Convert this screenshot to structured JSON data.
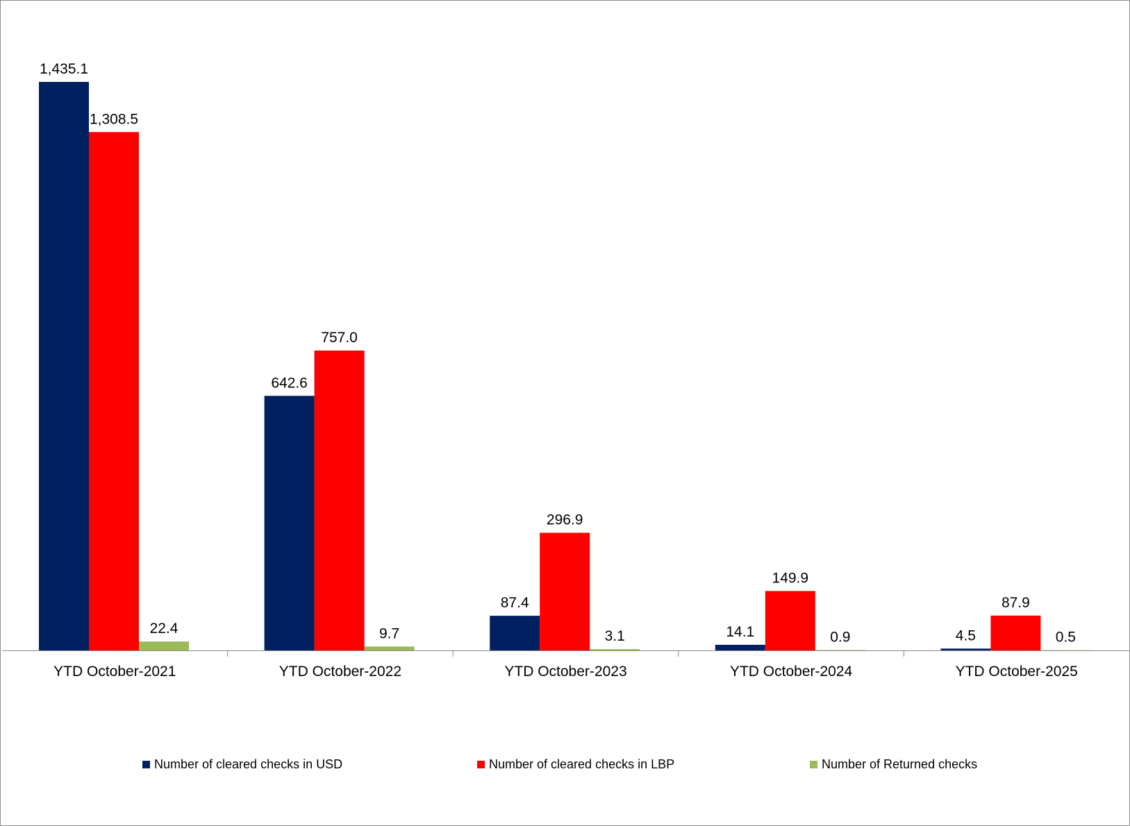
{
  "chart_data": {
    "type": "bar",
    "title": "",
    "xlabel": "",
    "ylabel": "",
    "categories": [
      "YTD October-2021",
      "YTD October-2022",
      "YTD October-2023",
      "YTD October-2024",
      "YTD October-2025"
    ],
    "series": [
      {
        "name": "Number of cleared checks in USD",
        "color": "#002060",
        "values": [
          1435.1,
          642.6,
          87.4,
          14.1,
          4.5
        ],
        "labels": [
          "1,435.1",
          "642.6",
          "87.4",
          "14.1",
          "4.5"
        ]
      },
      {
        "name": "Number of cleared checks in LBP",
        "color": "#ff0000",
        "values": [
          1308.5,
          757.0,
          296.9,
          149.9,
          87.9
        ],
        "labels": [
          "1,308.5",
          "757.0",
          "296.9",
          "149.9",
          "87.9"
        ]
      },
      {
        "name": "Number of Returned checks",
        "color": "#9bbb59",
        "values": [
          22.4,
          9.7,
          3.1,
          0.9,
          0.5
        ],
        "labels": [
          "22.4",
          "9.7",
          "3.1",
          "0.9",
          "0.5"
        ]
      }
    ],
    "ylim": [
      0,
      1600
    ],
    "grid": false,
    "legend_position": "bottom"
  }
}
